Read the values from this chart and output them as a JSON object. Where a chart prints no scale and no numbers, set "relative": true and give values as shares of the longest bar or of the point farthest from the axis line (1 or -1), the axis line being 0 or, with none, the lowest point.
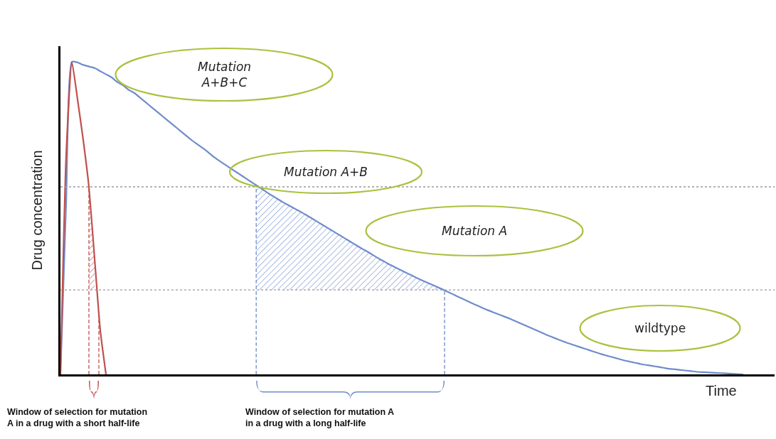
{
  "chart_data": {
    "type": "line",
    "relative": true,
    "ylabel": "Drug concentration",
    "xlabel": "Time",
    "categories": [
      null,
      null,
      null,
      null,
      null,
      null,
      null,
      null,
      null,
      null,
      null,
      null,
      null,
      null,
      null,
      null,
      null,
      null,
      null,
      null,
      null,
      null,
      null,
      null,
      null,
      null,
      null,
      null,
      null,
      null,
      null,
      null,
      null,
      null,
      null,
      null,
      null,
      null,
      null,
      null,
      null,
      null,
      null,
      null,
      null,
      null,
      null,
      null,
      null,
      null,
      null,
      null,
      null,
      null,
      null,
      null,
      null,
      null,
      null,
      null,
      null,
      null,
      null,
      null,
      null,
      null,
      null,
      null,
      null,
      null,
      null,
      null,
      null,
      null,
      null,
      null,
      null,
      null,
      null,
      null,
      null,
      null,
      null,
      null,
      null,
      null,
      null,
      null,
      null,
      null,
      null,
      null,
      null,
      null,
      null,
      null,
      null,
      null,
      null,
      null,
      null,
      null,
      null,
      null,
      null,
      null,
      null,
      null,
      null,
      null,
      null,
      null,
      null,
      null,
      null,
      null,
      null,
      null,
      null,
      null,
      null
    ],
    "series": [
      {
        "color": "#6f8ccc",
        "values": [
          0,
          0.55,
          1,
          0.998,
          0.99,
          0.985,
          0.98,
          0.97,
          0.96,
          0.95,
          0.935,
          0.925,
          0.91,
          0.9,
          0.885,
          0.87,
          0.855,
          0.84,
          0.825,
          0.81,
          0.795,
          0.78,
          0.765,
          0.75,
          0.737,
          0.724,
          0.71,
          0.695,
          0.682,
          0.67,
          0.658,
          0.646,
          0.634,
          0.622,
          0.61,
          0.598,
          0.586,
          0.574,
          0.563,
          0.552,
          0.542,
          0.532,
          0.522,
          0.512,
          0.501,
          0.49,
          0.479,
          0.468,
          0.457,
          0.446,
          0.435,
          0.424,
          0.413,
          0.402,
          0.392,
          0.381,
          0.37,
          0.36,
          0.35,
          0.341,
          0.332,
          0.323,
          0.314,
          0.305,
          0.297,
          0.289,
          0.281,
          0.273,
          0.265,
          0.256,
          0.247,
          0.239,
          0.23,
          0.222,
          0.214,
          0.206,
          0.199,
          0.192,
          0.185,
          0.178,
          0.17,
          0.162,
          0.154,
          0.146,
          0.138,
          0.13,
          0.122,
          0.115,
          0.108,
          0.101,
          0.095,
          0.089,
          0.083,
          0.077,
          0.071,
          0.065,
          0.06,
          0.055,
          0.05,
          0.045,
          0.041,
          0.037,
          0.033,
          0.03,
          0.027,
          0.024,
          0.021,
          0.018,
          0.016,
          0.014,
          0.012,
          0.01,
          0.008,
          0.007,
          0.006,
          0.005,
          0.004,
          0.003,
          0.002,
          0.001,
          0
        ]
      },
      {
        "color": "#c0504d",
        "values": [
          0,
          0.7,
          1,
          0.88,
          0.75,
          0.6,
          0.37,
          0.14,
          0,
          null,
          null,
          null,
          null,
          null,
          null,
          null,
          null,
          null,
          null,
          null,
          null,
          null,
          null,
          null,
          null,
          null,
          null,
          null,
          null,
          null,
          null,
          null,
          null,
          null,
          null,
          null,
          null,
          null,
          null,
          null,
          null,
          null,
          null,
          null,
          null,
          null,
          null,
          null,
          null,
          null,
          null,
          null,
          null,
          null,
          null,
          null,
          null,
          null,
          null,
          null,
          null,
          null,
          null,
          null,
          null,
          null,
          null,
          null,
          null,
          null,
          null,
          null,
          null,
          null,
          null,
          null,
          null,
          null,
          null,
          null,
          null,
          null,
          null,
          null,
          null,
          null,
          null,
          null,
          null,
          null,
          null,
          null,
          null,
          null,
          null,
          null,
          null,
          null,
          null,
          null,
          null,
          null,
          null,
          null,
          null,
          null,
          null,
          null,
          null,
          null,
          null,
          null,
          null,
          null,
          null,
          null,
          null,
          null,
          null,
          null,
          null
        ]
      }
    ],
    "ref_lines": [
      {
        "axis": "y",
        "value": 0.6,
        "color": "#9a9a9a",
        "line_style": "dotted"
      },
      {
        "axis": "y",
        "value": 0.27,
        "color": "#9a9a9a",
        "line_style": "dotted"
      }
    ],
    "annotations": [
      "Mutation\nA+B+C",
      "Mutation A+B",
      "Mutation A",
      "wildtype",
      "Window of selection for mutation\nA in a drug with a short half-life",
      "Window of selection for mutation A\nin a drug with a long half-life"
    ],
    "line_style": "solid"
  }
}
